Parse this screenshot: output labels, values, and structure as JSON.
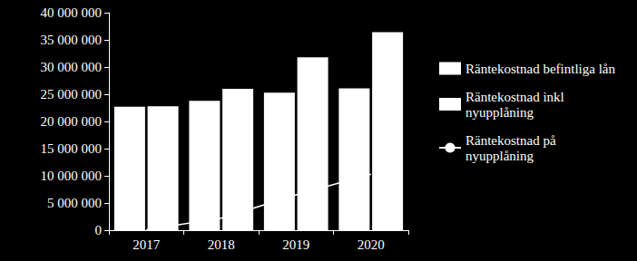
{
  "chart_data": {
    "type": "bar",
    "categories": [
      "2017",
      "2018",
      "2019",
      "2020"
    ],
    "series": [
      {
        "name": "Räntekostnad befintliga lån",
        "type": "bar",
        "color": "#ffffff",
        "values": [
          22700000,
          23800000,
          25300000,
          26100000
        ]
      },
      {
        "name": "Räntekostnad inkl nyupplåning",
        "type": "bar",
        "color": "#ffffff",
        "values": [
          22800000,
          26000000,
          31800000,
          36400000
        ]
      },
      {
        "name": "Räntekostnad på nyupplåning",
        "type": "line",
        "color": "#ffffff",
        "line_style": "solid",
        "values": [
          100000,
          2200000,
          6500000,
          10300000
        ]
      }
    ],
    "ylim": [
      0,
      40000000
    ],
    "yticks": [
      0,
      {
        "value": 5000000,
        "label": "5 000 000"
      },
      {
        "value": 10000000,
        "label": "10 000 000"
      },
      {
        "value": 15000000,
        "label": "15 000 000"
      },
      {
        "value": 20000000,
        "label": "20 000 000"
      },
      {
        "value": 25000000,
        "label": "25 000 000"
      },
      {
        "value": 30000000,
        "label": "30 000 000"
      },
      {
        "value": 35000000,
        "label": "35 000 000"
      },
      {
        "value": 40000000,
        "label": "40 000 000"
      }
    ],
    "grid": false,
    "legend": "right"
  }
}
